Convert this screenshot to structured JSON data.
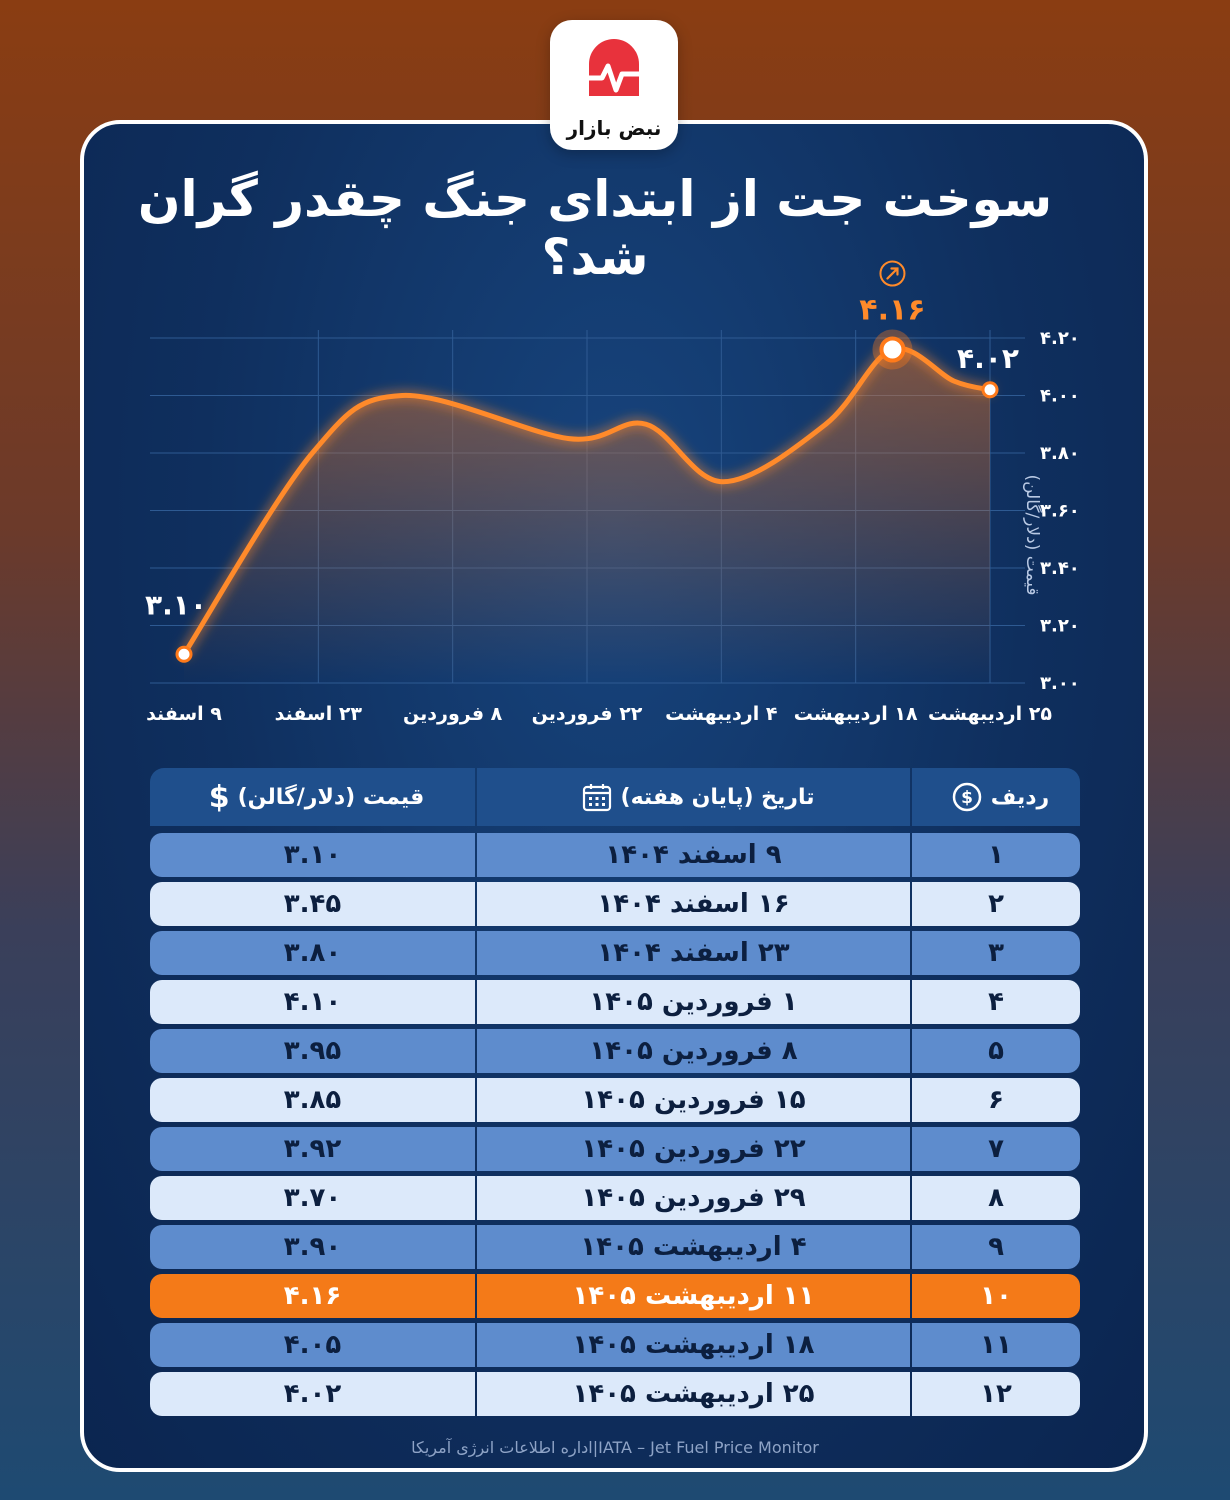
{
  "brand": {
    "name": "نبض بازار"
  },
  "title": "سوخت جت از ابتدای جنگ چقدر گران شد؟",
  "colors": {
    "accent": "#f47a18",
    "line": "#ff8a2a",
    "card": "#0f2f5e"
  },
  "chart_data": {
    "type": "line",
    "x_ticks": [
      "۹ اسفند",
      "۲۳ اسفند",
      "۸ فروردین",
      "۲۲ فروردین",
      "۴ اردیبهشت",
      "۱۸ اردیبهشت",
      "۲۵ اردیبهشت"
    ],
    "y_ticks": [
      "۳.۰۰",
      "۳.۲۰",
      "۳.۴۰",
      "۳.۶۰",
      "۳.۸۰",
      "۴.۰۰",
      "۴.۲۰"
    ],
    "ylabel": "قیمت (دلار/گالن)",
    "ylim": [
      3.0,
      4.2
    ],
    "points": [
      {
        "x": 0.0,
        "y": 3.1
      },
      {
        "x": 1.0,
        "y": 3.8
      },
      {
        "x": 1.7,
        "y": 4.0
      },
      {
        "x": 3.0,
        "y": 3.85
      },
      {
        "x": 3.6,
        "y": 3.9
      },
      {
        "x": 4.2,
        "y": 3.7
      },
      {
        "x": 5.0,
        "y": 3.9
      },
      {
        "x": 5.52,
        "y": 4.16
      },
      {
        "x": 6.0,
        "y": 4.05
      },
      {
        "x": 6.28,
        "y": 4.02
      }
    ],
    "annotations": [
      {
        "x": 0.0,
        "y": 3.1,
        "label": "۳.۱۰"
      },
      {
        "x": 5.52,
        "y": 4.16,
        "label": "۴.۱۶",
        "highlight": true
      },
      {
        "x": 6.28,
        "y": 4.02,
        "label": "۴.۰۲"
      }
    ],
    "grid": true
  },
  "table": {
    "headers": {
      "rank": "ردیف",
      "date": "تاریخ (پایان هفته)",
      "price": "قیمت (دلار/گالن)"
    },
    "rows": [
      {
        "rank": "۱",
        "date": "۹ اسفند ۱۴۰۴",
        "price": "۳.۱۰"
      },
      {
        "rank": "۲",
        "date": "۱۶ اسفند ۱۴۰۴",
        "price": "۳.۴۵"
      },
      {
        "rank": "۳",
        "date": "۲۳ اسفند ۱۴۰۴",
        "price": "۳.۸۰"
      },
      {
        "rank": "۴",
        "date": "۱ فروردین ۱۴۰۵",
        "price": "۴.۱۰"
      },
      {
        "rank": "۵",
        "date": "۸ فروردین ۱۴۰۵",
        "price": "۳.۹۵"
      },
      {
        "rank": "۶",
        "date": "۱۵ فروردین ۱۴۰۵",
        "price": "۳.۸۵"
      },
      {
        "rank": "۷",
        "date": "۲۲ فروردین ۱۴۰۵",
        "price": "۳.۹۲"
      },
      {
        "rank": "۸",
        "date": "۲۹ فروردین ۱۴۰۵",
        "price": "۳.۷۰"
      },
      {
        "rank": "۹",
        "date": "۴ اردیبهشت ۱۴۰۵",
        "price": "۳.۹۰"
      },
      {
        "rank": "۱۰",
        "date": "۱۱ اردیبهشت ۱۴۰۵",
        "price": "۴.۱۶",
        "highlight": true
      },
      {
        "rank": "۱۱",
        "date": "۱۸ اردیبهشت ۱۴۰۵",
        "price": "۴.۰۵"
      },
      {
        "rank": "۱۲",
        "date": "۲۵ اردیبهشت ۱۴۰۵",
        "price": "۴.۰۲"
      }
    ]
  },
  "footer": "اداره اطلاعات انرژی آمریکا|IATA – Jet Fuel Price Monitor"
}
